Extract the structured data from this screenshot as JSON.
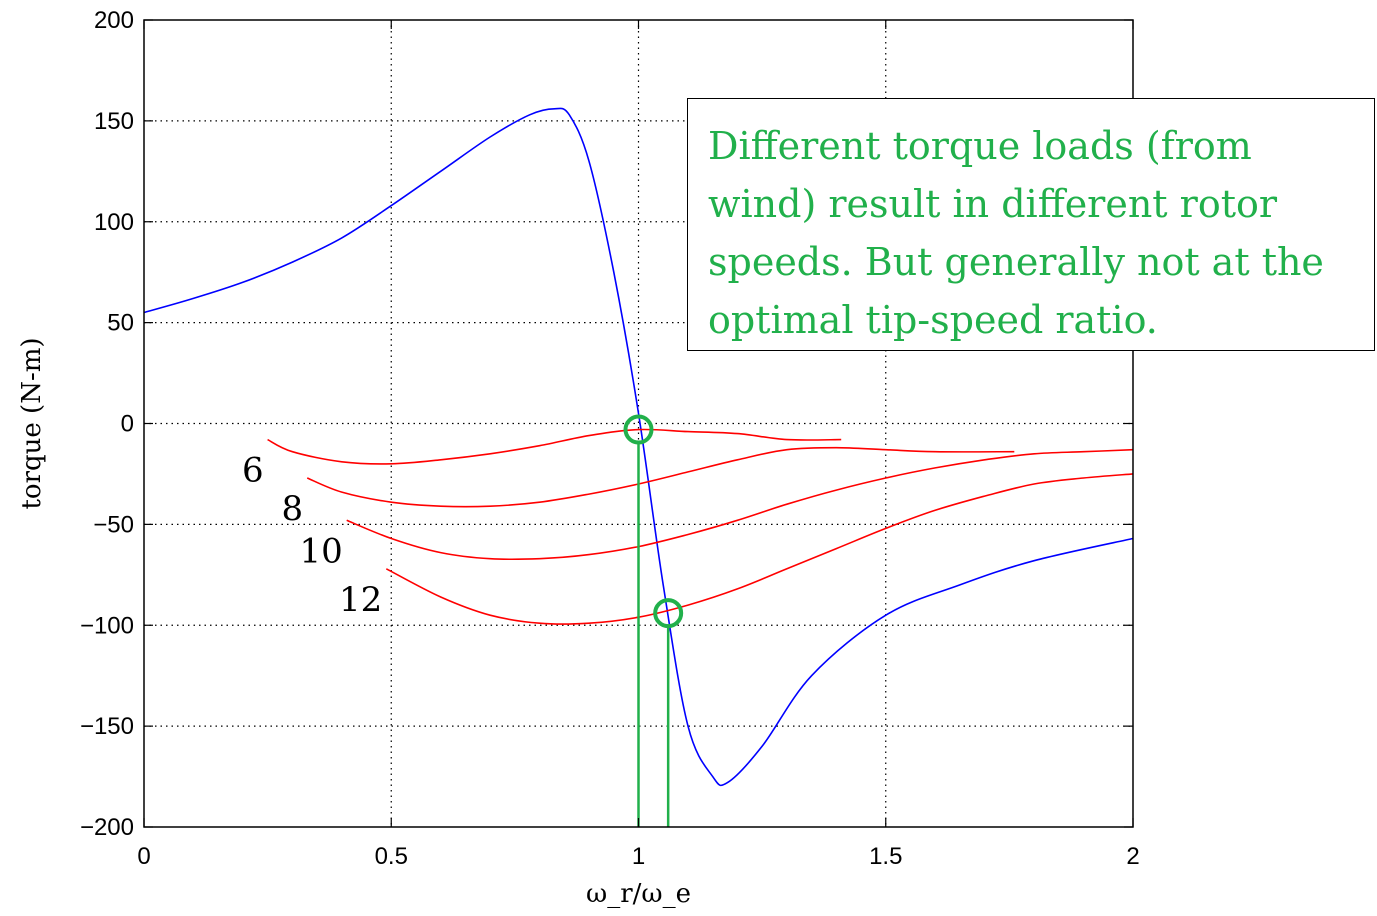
{
  "chart_data": {
    "type": "line",
    "xlabel": "ω_r/ω_e",
    "ylabel": "torque (N-m)",
    "xlim": [
      0,
      2
    ],
    "ylim": [
      -200,
      200
    ],
    "x_ticks": [
      "0",
      "0.5",
      "1",
      "1.5",
      "2"
    ],
    "y_ticks": [
      "200",
      "150",
      "100",
      "50",
      "0",
      "−50",
      "−100",
      "−150",
      "−200"
    ],
    "grid": true,
    "series": [
      {
        "color": "#0000ff",
        "x": [
          0,
          0.1,
          0.2,
          0.3,
          0.4,
          0.5,
          0.6,
          0.7,
          0.78,
          0.83,
          0.86,
          0.9,
          0.95,
          1.0,
          1.05,
          1.1,
          1.15,
          1.18,
          1.25,
          1.35,
          1.5,
          1.65,
          1.8,
          2.0
        ],
        "y": [
          55,
          62,
          70,
          80,
          92,
          108,
          125,
          142,
          153,
          156,
          153,
          130,
          75,
          5,
          -80,
          -150,
          -175,
          -178,
          -160,
          -125,
          -95,
          -80,
          -68,
          -57
        ]
      },
      {
        "name": "6",
        "color": "#ff0000",
        "x": [
          0.25,
          0.3,
          0.4,
          0.5,
          0.6,
          0.7,
          0.8,
          0.9,
          1.0,
          1.1,
          1.2,
          1.3,
          1.41
        ],
        "y": [
          -8,
          -14,
          -19,
          -20,
          -18,
          -15,
          -11,
          -6,
          -3,
          -4,
          -5,
          -8,
          -8
        ]
      },
      {
        "name": "8",
        "color": "#ff0000",
        "x": [
          0.33,
          0.4,
          0.5,
          0.6,
          0.7,
          0.8,
          0.9,
          1.0,
          1.1,
          1.2,
          1.3,
          1.4,
          1.5,
          1.6,
          1.76
        ],
        "y": [
          -27,
          -34,
          -39,
          -41,
          -41,
          -39,
          -35,
          -30,
          -24,
          -18,
          -13,
          -12,
          -13,
          -14,
          -14
        ]
      },
      {
        "name": "10",
        "color": "#ff0000",
        "x": [
          0.41,
          0.5,
          0.6,
          0.7,
          0.8,
          0.9,
          1.0,
          1.1,
          1.2,
          1.3,
          1.4,
          1.5,
          1.6,
          1.7,
          1.8,
          1.9,
          2.0
        ],
        "y": [
          -48,
          -57,
          -64,
          -67,
          -67,
          -65,
          -61,
          -55,
          -48,
          -40,
          -33,
          -27,
          -22,
          -18,
          -15,
          -14,
          -13
        ]
      },
      {
        "name": "12",
        "color": "#ff0000",
        "x": [
          0.49,
          0.6,
          0.7,
          0.8,
          0.9,
          1.0,
          1.1,
          1.2,
          1.3,
          1.4,
          1.5,
          1.6,
          1.7,
          1.8,
          1.9,
          2.0
        ],
        "y": [
          -72,
          -86,
          -95,
          -99,
          -99,
          -96,
          -90,
          -82,
          -72,
          -62,
          -52,
          -43,
          -36,
          -30,
          -27,
          -25
        ]
      }
    ],
    "markers": [
      {
        "color": "#21b04b",
        "x": 1.0,
        "y": -3
      },
      {
        "color": "#21b04b",
        "x": 1.06,
        "y": -94
      }
    ],
    "annotation": "Different torque loads (from wind) result in different rotor speeds. But generally not at the optimal tip-speed ratio."
  }
}
